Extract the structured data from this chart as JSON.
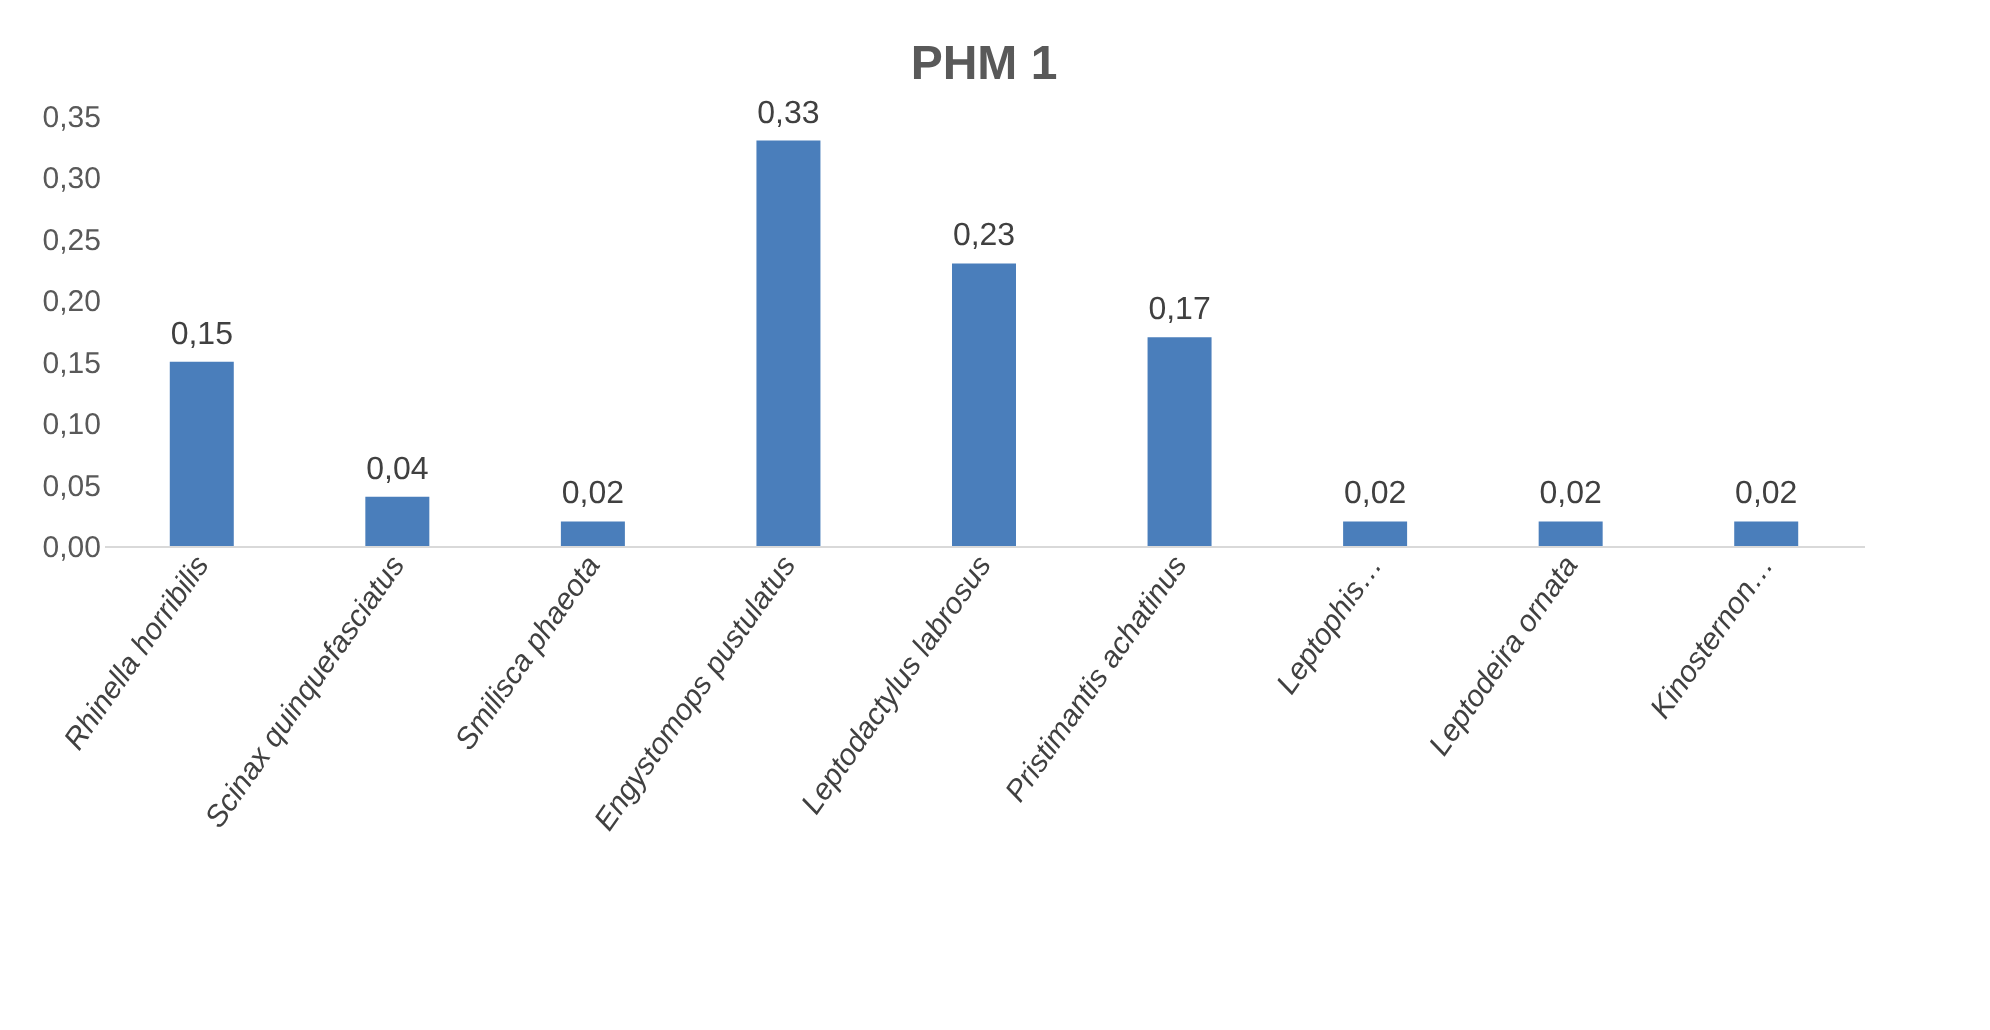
{
  "chart_data": {
    "type": "bar",
    "title": "PHM 1",
    "categories": [
      "Rhinella horribilis",
      "Scinax quinquefasciatus",
      "Smilisca phaeota",
      "Engystomops pustulatus",
      "Leptodactylus labrosus",
      "Pristimantis achatinus",
      "Leptophis…",
      "Leptodeira ornata",
      "Kinosternon…"
    ],
    "values": [
      0.15,
      0.04,
      0.02,
      0.33,
      0.23,
      0.17,
      0.02,
      0.02,
      0.02
    ],
    "value_labels": [
      "0,15",
      "0,04",
      "0,02",
      "0,33",
      "0,23",
      "0,17",
      "0,02",
      "0,02",
      "0,02"
    ],
    "color": "#4a7ebb",
    "ylim": [
      0,
      0.35
    ],
    "yticks": [
      {
        "value": 0,
        "label": "0,00"
      },
      {
        "value": 0.05,
        "label": "0,05"
      },
      {
        "value": 0.1,
        "label": "0,10"
      },
      {
        "value": 0.15,
        "label": "0,15"
      },
      {
        "value": 0.2,
        "label": "0,20"
      },
      {
        "value": 0.25,
        "label": "0,25"
      },
      {
        "value": 0.3,
        "label": "0,30"
      },
      {
        "value": 0.35,
        "label": "0,35"
      }
    ],
    "grid": false
  }
}
